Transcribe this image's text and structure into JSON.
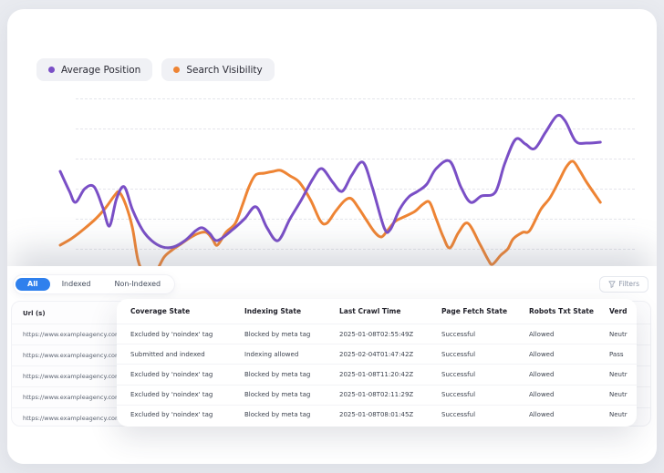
{
  "page": {
    "background": "#e9ebf0",
    "card_background": "#ffffff"
  },
  "legend": {
    "items": [
      {
        "label": "Average Position",
        "color": "#7a4fc6"
      },
      {
        "label": "Search Visibility",
        "color": "#ee8434"
      }
    ]
  },
  "chart_data": {
    "type": "line",
    "title": "",
    "xlabel": "",
    "ylabel": "",
    "axis_tick_labels_visible": false,
    "grid": {
      "style": "dashed-horizontal",
      "count": 6
    },
    "legend_position": "top-left",
    "note": "No numeric axes are rendered in the UI; values are normalized 0-100 estimates read from line positions.",
    "series": [
      {
        "name": "Search Visibility",
        "color": "#ee8434",
        "points": [
          [
            0.5,
            15.5
          ],
          [
            2.5,
            19
          ],
          [
            4.7,
            24
          ],
          [
            7,
            30
          ],
          [
            8.8,
            36
          ],
          [
            10.5,
            43
          ],
          [
            11.3,
            44.5
          ],
          [
            12.5,
            37.5
          ],
          [
            13.7,
            25
          ],
          [
            14.7,
            7.5
          ],
          [
            15.8,
            0
          ],
          [
            17.2,
            -1
          ],
          [
            18.3,
            2.5
          ],
          [
            19.5,
            9
          ],
          [
            20.8,
            12.5
          ],
          [
            22.5,
            16
          ],
          [
            24.2,
            19.5
          ],
          [
            25.8,
            22
          ],
          [
            27.2,
            22.5
          ],
          [
            28.3,
            19
          ],
          [
            29.2,
            15.5
          ],
          [
            30.8,
            22.5
          ],
          [
            32.5,
            27.5
          ],
          [
            33.8,
            37.5
          ],
          [
            35,
            47.5
          ],
          [
            36.2,
            54
          ],
          [
            37.8,
            55
          ],
          [
            39.5,
            56
          ],
          [
            40.8,
            56.5
          ],
          [
            42.5,
            53.5
          ],
          [
            44.2,
            50
          ],
          [
            46.3,
            40
          ],
          [
            48,
            29
          ],
          [
            49.2,
            27.5
          ],
          [
            50.8,
            34
          ],
          [
            52.5,
            40
          ],
          [
            53.7,
            41
          ],
          [
            55,
            36
          ],
          [
            56.3,
            30
          ],
          [
            58,
            22.5
          ],
          [
            59.2,
            20
          ],
          [
            60.3,
            23.5
          ],
          [
            61.7,
            28.5
          ],
          [
            63.3,
            31
          ],
          [
            65.3,
            34
          ],
          [
            66.8,
            38
          ],
          [
            68,
            39
          ],
          [
            69.2,
            30
          ],
          [
            70.5,
            20
          ],
          [
            71.7,
            14
          ],
          [
            73.3,
            22.5
          ],
          [
            75,
            27.5
          ],
          [
            77.2,
            16
          ],
          [
            78.7,
            7.5
          ],
          [
            79.5,
            5
          ],
          [
            81,
            10
          ],
          [
            82.3,
            13.5
          ],
          [
            83.3,
            19
          ],
          [
            85,
            22.5
          ],
          [
            86.3,
            23.5
          ],
          [
            88.3,
            35
          ],
          [
            90,
            41.5
          ],
          [
            91.7,
            51
          ],
          [
            93,
            58.5
          ],
          [
            94.2,
            61.5
          ],
          [
            95.5,
            56
          ],
          [
            96.7,
            50
          ],
          [
            99.2,
            39
          ]
        ]
      },
      {
        "name": "Average Position",
        "color": "#7a4fc6",
        "points": [
          [
            0.5,
            56
          ],
          [
            2.2,
            45
          ],
          [
            3.3,
            39
          ],
          [
            5,
            46.5
          ],
          [
            6.7,
            47.5
          ],
          [
            8.3,
            36
          ],
          [
            9.5,
            26
          ],
          [
            10.8,
            41
          ],
          [
            12.2,
            47.5
          ],
          [
            13.7,
            35
          ],
          [
            15.5,
            24
          ],
          [
            17.2,
            18
          ],
          [
            19.2,
            14.5
          ],
          [
            21.2,
            14.5
          ],
          [
            23.3,
            18
          ],
          [
            25.3,
            23.5
          ],
          [
            26.5,
            25
          ],
          [
            27.8,
            22
          ],
          [
            29.2,
            18
          ],
          [
            32,
            24
          ],
          [
            34.2,
            30
          ],
          [
            36.3,
            36.5
          ],
          [
            38.3,
            25
          ],
          [
            40.3,
            18
          ],
          [
            42.5,
            30
          ],
          [
            44.5,
            40
          ],
          [
            46.7,
            52
          ],
          [
            48.3,
            57.5
          ],
          [
            50.3,
            50
          ],
          [
            52,
            45
          ],
          [
            53.8,
            54
          ],
          [
            55.8,
            61
          ],
          [
            57.5,
            47.5
          ],
          [
            59.7,
            25
          ],
          [
            60.8,
            24
          ],
          [
            62.5,
            35
          ],
          [
            64.2,
            42
          ],
          [
            65.8,
            45
          ],
          [
            67.5,
            49
          ],
          [
            69.2,
            57.5
          ],
          [
            71.7,
            61.5
          ],
          [
            73.7,
            47.5
          ],
          [
            75.5,
            39
          ],
          [
            77.5,
            42.5
          ],
          [
            80,
            44.5
          ],
          [
            81.7,
            60
          ],
          [
            83.7,
            73.5
          ],
          [
            85.5,
            71
          ],
          [
            87.2,
            68.5
          ],
          [
            89.2,
            77.5
          ],
          [
            91.3,
            86.5
          ],
          [
            92.8,
            83.5
          ],
          [
            94.7,
            72.5
          ],
          [
            96.7,
            71.5
          ],
          [
            99.2,
            72
          ]
        ]
      }
    ]
  },
  "tabs": [
    {
      "label": "All",
      "active": true,
      "color": "#2f80ed"
    },
    {
      "label": "Indexed",
      "active": false
    },
    {
      "label": "Non-Indexed",
      "active": false
    }
  ],
  "filters_button": {
    "label": "Filters",
    "icon": "funnel-icon"
  },
  "url_list": {
    "header": "Url (s)",
    "rows": [
      "https://www.exampleagency.com/timeline/se",
      "https://www.exampleagency.com/category/te",
      "https://www.exampleagency.com/timeline/se",
      "https://www.exampleagency.com/timeline/se",
      "https://www.exampleagency.com/timeline/se"
    ]
  },
  "table": {
    "columns": [
      "Coverage State",
      "Indexing State",
      "Last Crawl Time",
      "Page Fetch State",
      "Robots Txt State",
      "Verdict"
    ],
    "rows": [
      [
        "Excluded by 'noindex' tag",
        "Blocked by meta tag",
        "2025-01-08T02:55:49Z",
        "Successful",
        "Allowed",
        "Neutral"
      ],
      [
        "Submitted and indexed",
        "Indexing allowed",
        "2025-02-04T01:47:42Z",
        "Successful",
        "Allowed",
        "Pass"
      ],
      [
        "Excluded by 'noindex' tag",
        "Blocked by meta tag",
        "2025-01-08T11:20:42Z",
        "Successful",
        "Allowed",
        "Neutral"
      ],
      [
        "Excluded by 'noindex' tag",
        "Blocked by meta tag",
        "2025-01-08T02:11:29Z",
        "Successful",
        "Allowed",
        "Neutral"
      ],
      [
        "Excluded by 'noindex' tag",
        "Blocked by meta tag",
        "2025-01-08T08:01:45Z",
        "Successful",
        "Allowed",
        "Neutral"
      ]
    ]
  }
}
